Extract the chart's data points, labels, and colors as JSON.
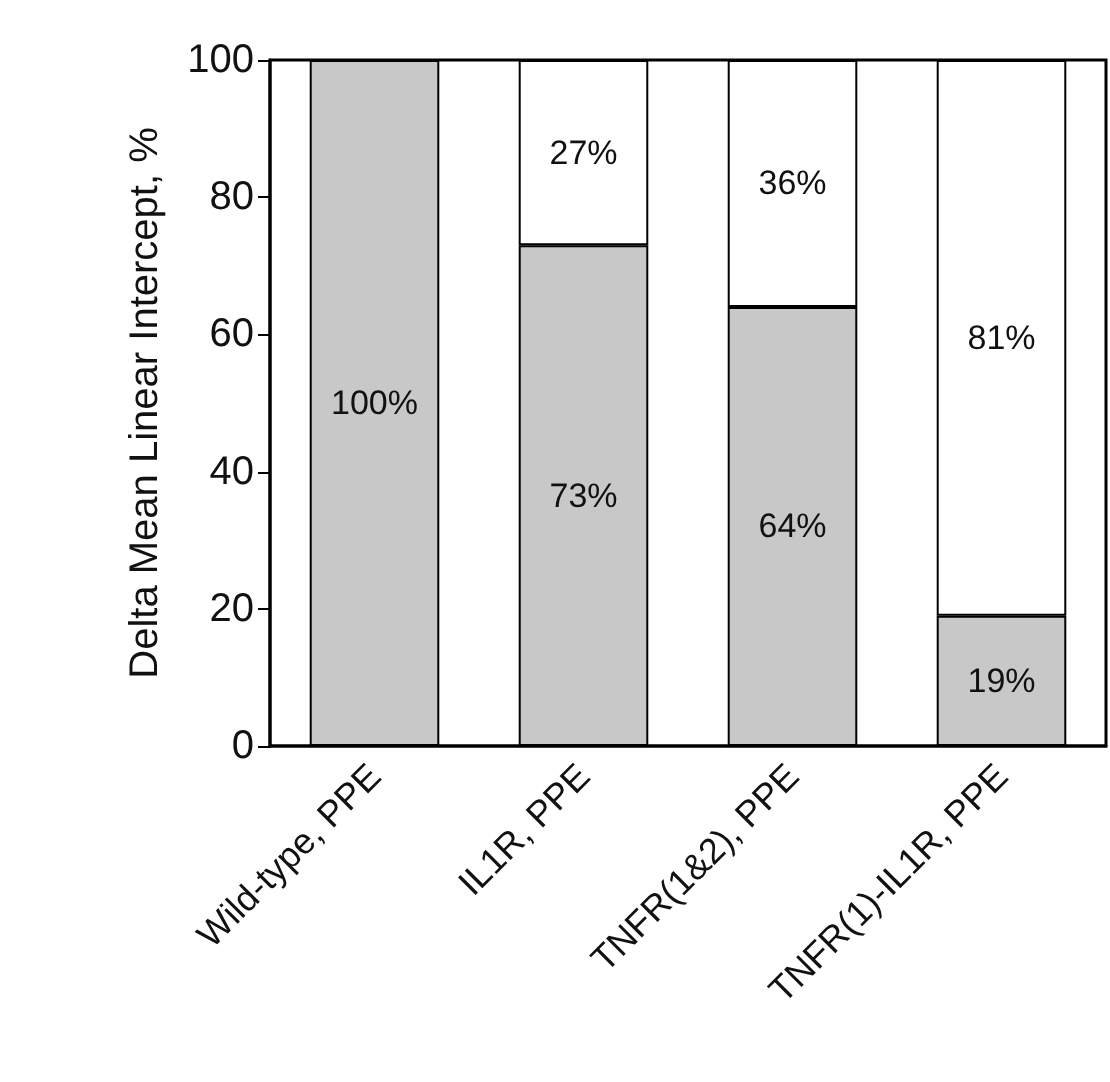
{
  "chart_data": {
    "type": "bar",
    "stacked": true,
    "ylabel": "Delta Mean Linear Intercept, %",
    "categories": [
      "Wild-type, PPE",
      "IL1R, PPE",
      "TNFR(1&2), PPE",
      "TNFR(1)-IL1R, PPE"
    ],
    "series": [
      {
        "color": "#c8c8c8",
        "values": [
          100,
          73,
          64,
          19
        ],
        "value_labels": [
          "100%",
          "73%",
          "64%",
          "19%"
        ]
      },
      {
        "color": "#ffffff",
        "values": [
          null,
          27,
          36,
          81
        ],
        "value_labels": [
          null,
          "27%",
          "36%",
          "81%"
        ]
      }
    ],
    "ylim": [
      0,
      100
    ],
    "yticks": [
      0,
      20,
      40,
      60,
      80,
      100
    ],
    "grid": false
  }
}
